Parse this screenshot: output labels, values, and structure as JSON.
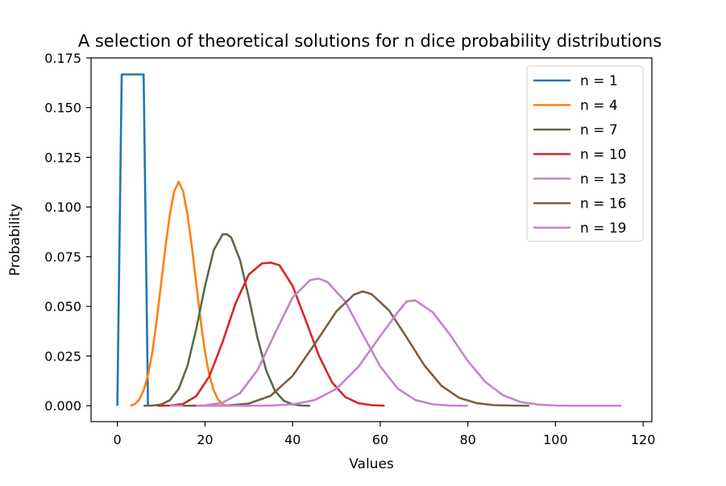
{
  "chart_data": {
    "type": "line",
    "title": "A selection of theoretical solutions for n dice probability distributions",
    "xlabel": "Values",
    "ylabel": "Probability",
    "xlim": [
      -6,
      122
    ],
    "ylim": [
      -0.008,
      0.175
    ],
    "x_ticks": [
      0,
      20,
      40,
      60,
      80,
      100,
      120
    ],
    "y_ticks": [
      0.0,
      0.025,
      0.05,
      0.075,
      0.1,
      0.125,
      0.15,
      0.175
    ],
    "x_tick_labels": [
      "0",
      "20",
      "40",
      "60",
      "80",
      "100",
      "120"
    ],
    "y_tick_labels": [
      "0.000",
      "0.025",
      "0.050",
      "0.075",
      "0.100",
      "0.125",
      "0.150",
      "0.175"
    ],
    "grid": false,
    "legend_position": "upper right",
    "series": [
      {
        "name": "n = 1",
        "n": 1,
        "color": "#1f77b4",
        "x": [
          0,
          1,
          2,
          3,
          4,
          5,
          6,
          7
        ],
        "y": [
          0.0,
          0.1667,
          0.1667,
          0.1667,
          0.1667,
          0.1667,
          0.1667,
          0.0
        ]
      },
      {
        "name": "n = 4",
        "n": 4,
        "color": "#ff7f0e",
        "x": [
          3,
          4,
          5,
          6,
          7,
          8,
          9,
          10,
          11,
          12,
          13,
          14,
          15,
          16,
          17,
          18,
          19,
          20,
          21,
          22,
          23,
          24,
          25
        ],
        "y": [
          0.0,
          0.0008,
          0.0031,
          0.0077,
          0.0154,
          0.027,
          0.0432,
          0.0617,
          0.0802,
          0.0965,
          0.108,
          0.1127,
          0.108,
          0.0965,
          0.0802,
          0.0617,
          0.0432,
          0.027,
          0.0154,
          0.0077,
          0.0031,
          0.0008,
          0.0
        ]
      },
      {
        "name": "n = 7",
        "n": 7,
        "color": "#5a6a4a",
        "x": [
          6,
          8,
          10,
          12,
          14,
          16,
          18,
          20,
          22,
          24,
          25,
          26,
          28,
          30,
          32,
          34,
          36,
          38,
          40,
          42,
          44
        ],
        "y": [
          0.0,
          0.0001,
          0.0006,
          0.0028,
          0.0085,
          0.02,
          0.0385,
          0.0601,
          0.0783,
          0.0862,
          0.0863,
          0.0846,
          0.0733,
          0.0545,
          0.034,
          0.0176,
          0.0074,
          0.0025,
          0.0007,
          0.0001,
          0.0
        ]
      },
      {
        "name": "n = 10",
        "n": 10,
        "color": "#d62728",
        "x": [
          9,
          12,
          15,
          18,
          21,
          24,
          27,
          30,
          33,
          35,
          37,
          40,
          43,
          46,
          49,
          52,
          55,
          58,
          61
        ],
        "y": [
          0.0,
          0.0001,
          0.0009,
          0.0048,
          0.0148,
          0.0319,
          0.0516,
          0.066,
          0.0716,
          0.072,
          0.0707,
          0.0603,
          0.043,
          0.0252,
          0.0118,
          0.0044,
          0.0013,
          0.0003,
          0.0
        ]
      },
      {
        "name": "n = 13",
        "n": 13,
        "color": "#c285c8",
        "x": [
          12,
          16,
          20,
          24,
          28,
          32,
          36,
          40,
          44,
          46,
          48,
          52,
          56,
          60,
          64,
          68,
          72,
          76,
          80
        ],
        "y": [
          0.0,
          0.0,
          0.0002,
          0.0015,
          0.0063,
          0.018,
          0.0365,
          0.0545,
          0.0632,
          0.064,
          0.0622,
          0.0525,
          0.036,
          0.0198,
          0.0086,
          0.0029,
          0.0007,
          0.0001,
          0.0
        ]
      },
      {
        "name": "n = 16",
        "n": 16,
        "color": "#7b5e45",
        "x": [
          15,
          20,
          25,
          30,
          35,
          40,
          45,
          50,
          54,
          56,
          58,
          62,
          66,
          70,
          74,
          78,
          82,
          86,
          90,
          94
        ],
        "y": [
          0.0,
          0.0,
          0.0001,
          0.0011,
          0.005,
          0.015,
          0.0309,
          0.0475,
          0.0559,
          0.0575,
          0.0562,
          0.048,
          0.0345,
          0.0205,
          0.01,
          0.004,
          0.0013,
          0.0003,
          0.0001,
          0.0
        ]
      },
      {
        "name": "n = 19",
        "n": 19,
        "color": "#c285c8",
        "x": [
          18,
          25,
          30,
          35,
          40,
          45,
          50,
          55,
          60,
          64,
          66,
          68,
          72,
          76,
          80,
          84,
          88,
          92,
          96,
          100,
          105,
          110,
          115
        ],
        "y": [
          0.0,
          0.0,
          0.0,
          0.0001,
          0.0007,
          0.0028,
          0.0085,
          0.0195,
          0.035,
          0.047,
          0.0525,
          0.053,
          0.047,
          0.0355,
          0.0225,
          0.012,
          0.0053,
          0.0019,
          0.0006,
          0.0001,
          0.0,
          0.0,
          0.0
        ]
      }
    ]
  }
}
